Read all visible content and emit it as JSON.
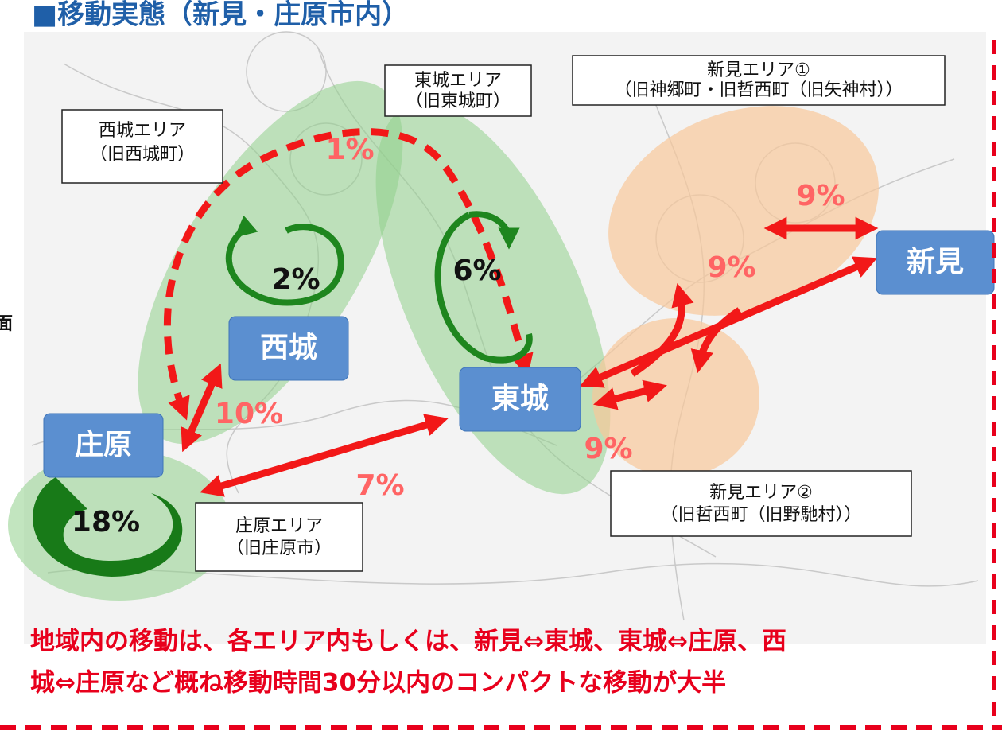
{
  "title": "■移動実態（新見・庄原市内）",
  "side_label": "面",
  "areas": [
    {
      "lines": [
        "西城エリア",
        "（旧西城町）"
      ]
    },
    {
      "lines": [
        "東城エリア",
        "（旧東城町）"
      ]
    },
    {
      "lines": [
        "新見エリア①",
        "（旧神郷町・旧哲西町（旧矢神村））"
      ]
    },
    {
      "lines": [
        "新見エリア②",
        "（旧哲西町（旧野馳村））"
      ]
    },
    {
      "lines": [
        "庄原エリア",
        "（旧庄原市）"
      ]
    }
  ],
  "nodes": [
    "庄原",
    "西城",
    "東城",
    "新見"
  ],
  "flows": [
    "1%",
    "2%",
    "6%",
    "9%",
    "9%",
    "9%",
    "10%",
    "7%",
    "18%"
  ],
  "footer": [
    "地域内の移動は、各エリア内もしくは、新見⇔東城、東城⇔庄原、西",
    "城⇔庄原など概ね移動時間30分以内のコンパクトな移動が大半"
  ]
}
